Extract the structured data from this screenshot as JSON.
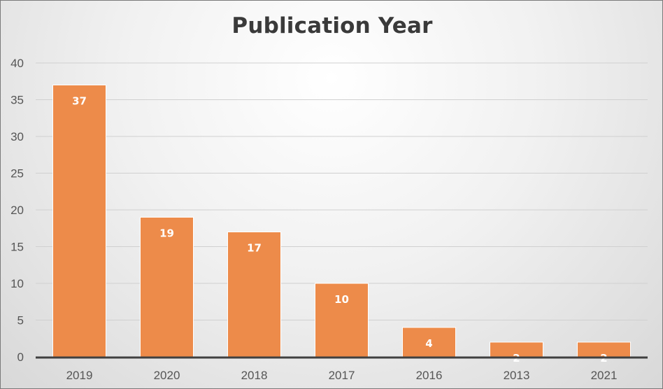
{
  "chart_data": {
    "type": "bar",
    "title": "Publication Year",
    "categories": [
      "2019",
      "2020",
      "2018",
      "2017",
      "2016",
      "2013",
      "2021"
    ],
    "values": [
      37,
      19,
      17,
      10,
      4,
      2,
      2
    ],
    "data_labels": [
      "37",
      "19",
      "17",
      "10",
      "4",
      "2",
      "2"
    ],
    "yticks": [
      "0",
      "5",
      "10",
      "15",
      "20",
      "25",
      "30",
      "35",
      "40"
    ],
    "ylim": [
      0,
      40
    ],
    "grid": true,
    "legend": "none",
    "bar_color": "#ED8B4A",
    "bar_edge_color": "#ffffff"
  }
}
